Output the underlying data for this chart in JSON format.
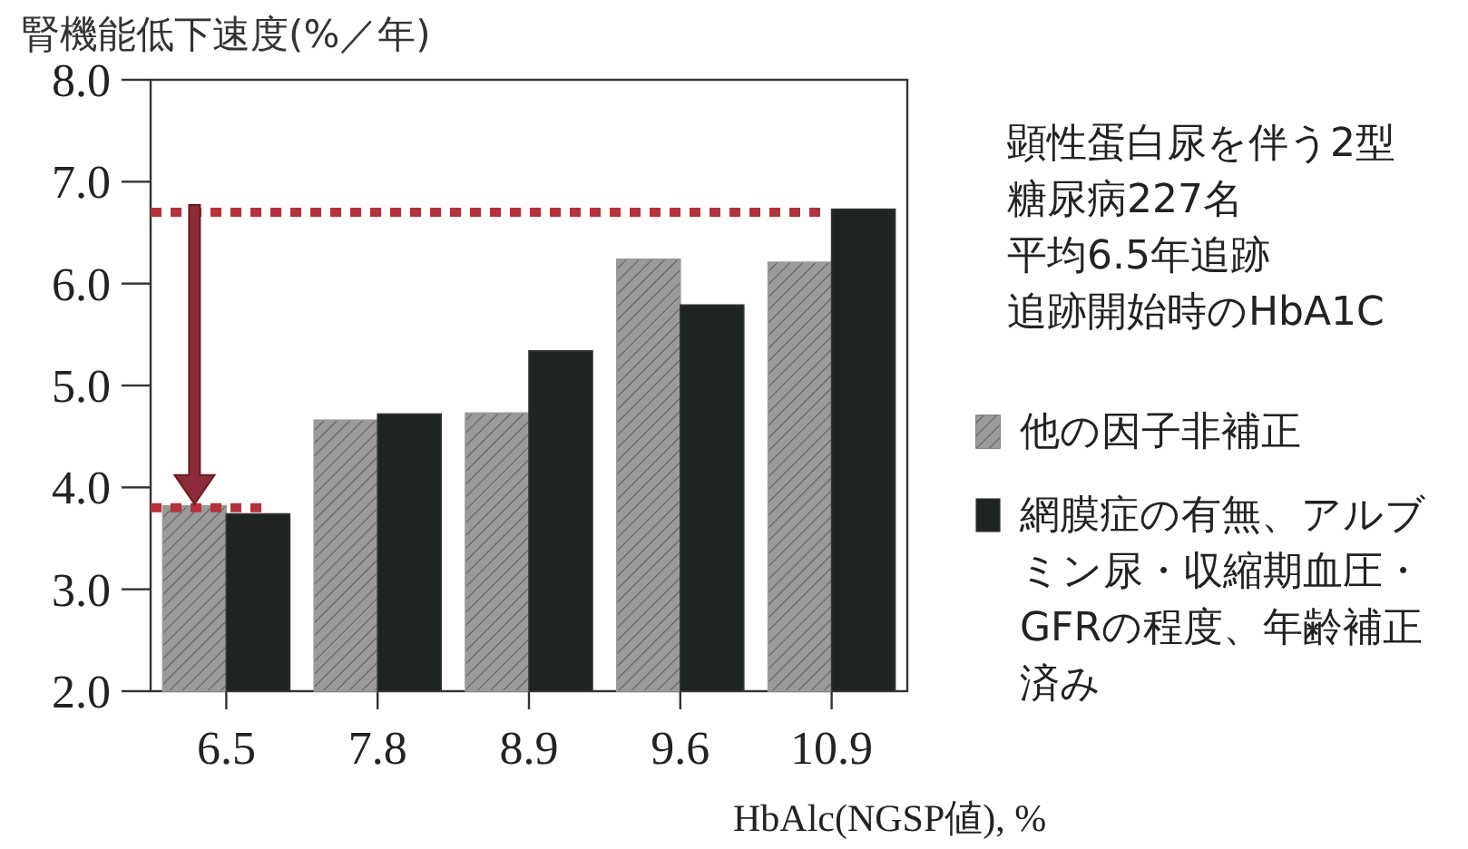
{
  "chart_data": {
    "type": "bar",
    "ylabel": "腎機能低下速度(%／年)",
    "xlabel": "HbAlc(NGSP値), %",
    "categories": [
      "6.5",
      "7.8",
      "8.9",
      "9.6",
      "10.9"
    ],
    "series": [
      {
        "name": "他の因子非補正",
        "color": "#9a9a9a",
        "values": [
          3.82,
          4.66,
          4.73,
          6.24,
          6.21
        ]
      },
      {
        "name": "網膜症の有無、アルブミン尿・収縮期血圧・GFRの程度、年齢補正済み",
        "color": "#1e2422",
        "values": [
          3.74,
          4.72,
          5.34,
          5.79,
          6.73
        ]
      }
    ],
    "ylim": [
      2,
      8
    ],
    "yticks": [
      {
        "value": 2,
        "label": "2.0"
      },
      {
        "value": 3,
        "label": "3.0"
      },
      {
        "value": 4,
        "label": "4.0"
      },
      {
        "value": 5,
        "label": "5.0"
      },
      {
        "value": 6,
        "label": "6.0"
      },
      {
        "value": 7,
        "label": "7.0"
      },
      {
        "value": 8,
        "label": "8.0"
      }
    ],
    "ref_lines": [
      {
        "axis": "y",
        "value": 6.7,
        "color": "#b5323a",
        "line_style": "dotted"
      },
      {
        "axis": "y",
        "value": 3.8,
        "color": "#b5323a",
        "line_style": "dotted"
      }
    ],
    "annotations": [
      "顕性蛋白尿を伴う2型",
      "糖尿病227名",
      "平均6.5年追跡",
      "追跡開始時のHbA1C"
    ],
    "legend": "right",
    "grid": false
  }
}
